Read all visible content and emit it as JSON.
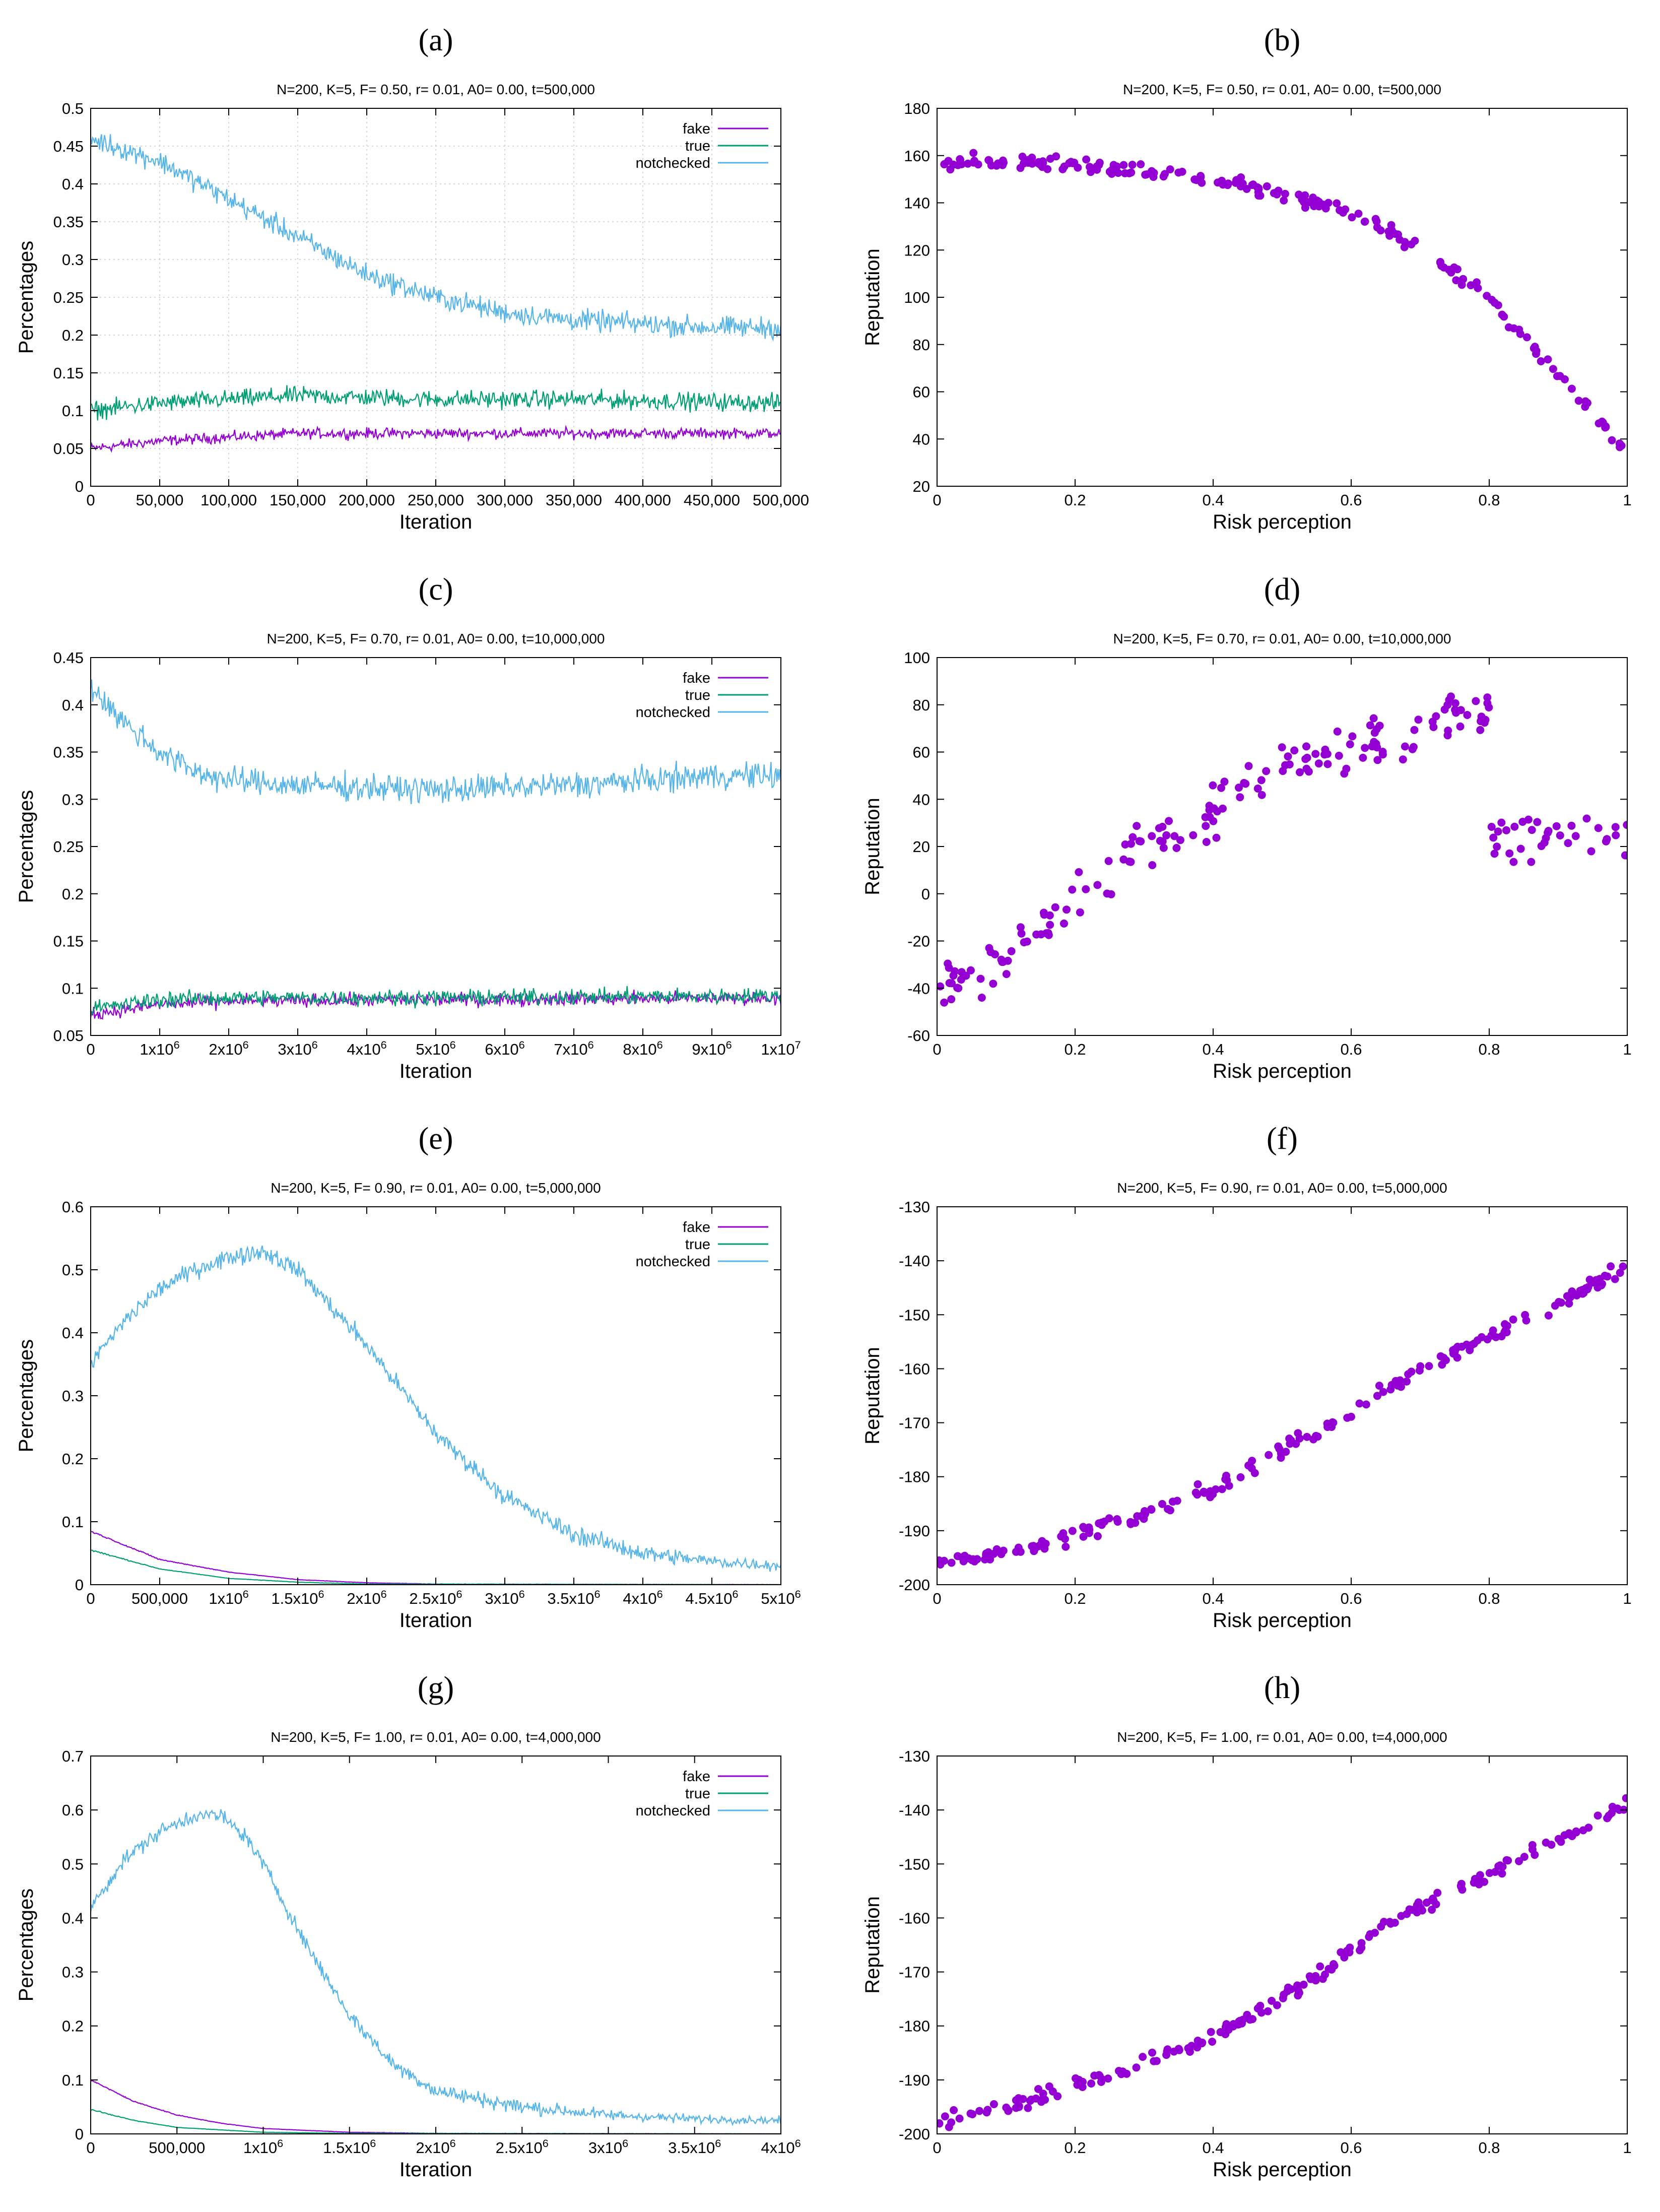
{
  "chart_data": [
    {
      "panel": "(a)",
      "type": "line",
      "title": "N=200, K=5, F= 0.50, r= 0.01, A0= 0.00, t=500,000",
      "xlabel": "Iteration",
      "ylabel": "Percentages",
      "xlim": [
        0,
        500000
      ],
      "ylim": [
        0,
        0.5
      ],
      "xticks": [
        0,
        50000,
        100000,
        150000,
        200000,
        250000,
        300000,
        350000,
        400000,
        450000,
        500000
      ],
      "xticklabels": [
        "0",
        "50,000",
        "100,000",
        "150,000",
        "200,000",
        "250,000",
        "300,000",
        "350,000",
        "400,000",
        "450,000",
        "500,000"
      ],
      "yticks": [
        0,
        0.05,
        0.1,
        0.15,
        0.2,
        0.25,
        0.3,
        0.35,
        0.4,
        0.45,
        0.5
      ],
      "yticklabels": [
        "0",
        "0.05",
        "0.1",
        "0.15",
        "0.2",
        "0.25",
        "0.3",
        "0.35",
        "0.4",
        "0.45",
        "0.5"
      ],
      "grid": true,
      "legend": "top-right",
      "series": [
        {
          "name": "fake",
          "color": "#9400d3",
          "noise": 0.006,
          "x": [
            0,
            50000,
            100000,
            150000,
            200000,
            300000,
            400000,
            500000
          ],
          "y": [
            0.05,
            0.06,
            0.065,
            0.07,
            0.07,
            0.07,
            0.07,
            0.07
          ]
        },
        {
          "name": "true",
          "color": "#009e73",
          "noise": 0.01,
          "x": [
            0,
            50000,
            100000,
            150000,
            250000,
            350000,
            500000
          ],
          "y": [
            0.1,
            0.11,
            0.115,
            0.12,
            0.115,
            0.115,
            0.11
          ]
        },
        {
          "name": "notchecked",
          "color": "#56b4e9",
          "noise": 0.012,
          "x": [
            0,
            50000,
            100000,
            150000,
            200000,
            250000,
            300000,
            350000,
            400000,
            450000,
            500000
          ],
          "y": [
            0.46,
            0.43,
            0.38,
            0.33,
            0.28,
            0.25,
            0.23,
            0.22,
            0.215,
            0.21,
            0.21
          ]
        }
      ]
    },
    {
      "panel": "(b)",
      "type": "scatter",
      "title": "N=200, K=5, F= 0.50, r= 0.01, A0= 0.00, t=500,000",
      "xlabel": "Risk perception",
      "ylabel": "Reputation",
      "xlim": [
        0,
        1
      ],
      "ylim": [
        20,
        180
      ],
      "xticks": [
        0,
        0.2,
        0.4,
        0.6,
        0.8,
        1
      ],
      "xticklabels": [
        "0",
        "0.2",
        "0.4",
        "0.6",
        "0.8",
        "1"
      ],
      "yticks": [
        20,
        40,
        60,
        80,
        100,
        120,
        140,
        160,
        180
      ],
      "yticklabels": [
        "20",
        "40",
        "60",
        "80",
        "100",
        "120",
        "140",
        "160",
        "180"
      ],
      "grid": false,
      "color": "#9400d3",
      "n_points": 200,
      "noise": 2.5,
      "trend": {
        "x": [
          0,
          0.1,
          0.2,
          0.3,
          0.4,
          0.5,
          0.6,
          0.7,
          0.8,
          0.9,
          1.0
        ],
        "y": [
          158,
          157,
          156,
          154,
          150,
          144,
          136,
          121,
          100,
          67,
          34
        ]
      }
    },
    {
      "panel": "(c)",
      "type": "line",
      "title": "N=200, K=5, F= 0.70, r= 0.01, A0= 0.00, t=10,000,000",
      "xlabel": "Iteration",
      "ylabel": "Percentages",
      "xlim": [
        0,
        10000000
      ],
      "ylim": [
        0.05,
        0.45
      ],
      "xticks": [
        0,
        1000000,
        2000000,
        3000000,
        4000000,
        5000000,
        6000000,
        7000000,
        8000000,
        9000000,
        10000000
      ],
      "xticklabels": [
        "0",
        "1x10^6",
        "2x10^6",
        "3x10^6",
        "4x10^6",
        "5x10^6",
        "6x10^6",
        "7x10^6",
        "8x10^6",
        "9x10^6",
        "1x10^7"
      ],
      "yticks": [
        0.05,
        0.1,
        0.15,
        0.2,
        0.25,
        0.3,
        0.35,
        0.4,
        0.45
      ],
      "yticklabels": [
        "0.05",
        "0.1",
        "0.15",
        "0.2",
        "0.25",
        "0.3",
        "0.35",
        "0.4",
        "0.45"
      ],
      "grid": false,
      "legend": "top-right",
      "series": [
        {
          "name": "fake",
          "color": "#9400d3",
          "noise": 0.006,
          "x": [
            0,
            1000000,
            2000000,
            5000000,
            10000000
          ],
          "y": [
            0.072,
            0.083,
            0.086,
            0.088,
            0.09
          ]
        },
        {
          "name": "true",
          "color": "#009e73",
          "noise": 0.007,
          "x": [
            0,
            1000000,
            2000000,
            5000000,
            10000000
          ],
          "y": [
            0.078,
            0.088,
            0.09,
            0.09,
            0.092
          ]
        },
        {
          "name": "notchecked",
          "color": "#56b4e9",
          "noise": 0.012,
          "x": [
            0,
            500000,
            1000000,
            1500000,
            2000000,
            3000000,
            5000000,
            7000000,
            8000000,
            9000000,
            10000000
          ],
          "y": [
            0.42,
            0.38,
            0.35,
            0.33,
            0.32,
            0.315,
            0.31,
            0.315,
            0.32,
            0.325,
            0.325
          ]
        }
      ]
    },
    {
      "panel": "(d)",
      "type": "scatter",
      "title": "N=200, K=5, F= 0.70, r= 0.01, A0= 0.00, t=10,000,000",
      "xlabel": "Risk perception",
      "ylabel": "Reputation",
      "xlim": [
        0,
        1
      ],
      "ylim": [
        -60,
        100
      ],
      "xticks": [
        0,
        0.2,
        0.4,
        0.6,
        0.8,
        1
      ],
      "xticklabels": [
        "0",
        "0.2",
        "0.4",
        "0.6",
        "0.8",
        "1"
      ],
      "yticks": [
        -60,
        -40,
        -20,
        0,
        20,
        40,
        60,
        80,
        100
      ],
      "yticklabels": [
        "-60",
        "-40",
        "-20",
        "0",
        "20",
        "40",
        "60",
        "80",
        "100"
      ],
      "grid": false,
      "color": "#9400d3",
      "n_points": 200,
      "noise": 9,
      "trend": {
        "x": [
          0,
          0.1,
          0.2,
          0.3,
          0.4,
          0.5,
          0.6,
          0.7,
          0.8,
          0.801,
          0.9,
          1.0
        ],
        "y": [
          -42,
          -30,
          0,
          20,
          35,
          55,
          62,
          70,
          82,
          22,
          25,
          20
        ]
      }
    },
    {
      "panel": "(e)",
      "type": "line",
      "title": "N=200, K=5, F= 0.90, r= 0.01, A0= 0.00, t=5,000,000",
      "xlabel": "Iteration",
      "ylabel": "Percentages",
      "xlim": [
        0,
        5000000
      ],
      "ylim": [
        0,
        0.6
      ],
      "xticks": [
        0,
        500000,
        1000000,
        1500000,
        2000000,
        2500000,
        3000000,
        3500000,
        4000000,
        4500000,
        5000000
      ],
      "xticklabels": [
        "0",
        "500,000",
        "1x10^6",
        "1.5x10^6",
        "2x10^6",
        "2.5x10^6",
        "3x10^6",
        "3.5x10^6",
        "4x10^6",
        "4.5x10^6",
        "5x10^6"
      ],
      "yticks": [
        0,
        0.1,
        0.2,
        0.3,
        0.4,
        0.5,
        0.6
      ],
      "yticklabels": [
        "0",
        "0.1",
        "0.2",
        "0.3",
        "0.4",
        "0.5",
        "0.6"
      ],
      "grid": false,
      "legend": "top-right",
      "series": [
        {
          "name": "fake",
          "color": "#9400d3",
          "noise": 0.001,
          "x": [
            0,
            500000,
            1000000,
            1500000,
            2000000,
            2500000,
            5000000
          ],
          "y": [
            0.085,
            0.04,
            0.02,
            0.008,
            0.003,
            0.001,
            0
          ]
        },
        {
          "name": "true",
          "color": "#009e73",
          "noise": 0.001,
          "x": [
            0,
            500000,
            1000000,
            1500000,
            2000000,
            5000000
          ],
          "y": [
            0.055,
            0.025,
            0.01,
            0.004,
            0.001,
            0
          ]
        },
        {
          "name": "notchecked",
          "color": "#56b4e9",
          "noise": 0.012,
          "x": [
            0,
            250000,
            500000,
            750000,
            1000000,
            1250000,
            1500000,
            2000000,
            2500000,
            3000000,
            3500000,
            4000000,
            4500000,
            5000000
          ],
          "y": [
            0.35,
            0.42,
            0.47,
            0.5,
            0.52,
            0.53,
            0.5,
            0.38,
            0.24,
            0.14,
            0.08,
            0.05,
            0.037,
            0.03
          ]
        }
      ]
    },
    {
      "panel": "(f)",
      "type": "scatter",
      "title": "N=200, K=5, F= 0.90, r= 0.01, A0= 0.00, t=5,000,000",
      "xlabel": "Risk perception",
      "ylabel": "Reputation",
      "xlim": [
        0,
        1
      ],
      "ylim": [
        -200,
        -130
      ],
      "xticks": [
        0,
        0.2,
        0.4,
        0.6,
        0.8,
        1
      ],
      "xticklabels": [
        "0",
        "0.2",
        "0.4",
        "0.6",
        "0.8",
        "1"
      ],
      "yticks": [
        -200,
        -190,
        -180,
        -170,
        -160,
        -150,
        -140,
        -130
      ],
      "yticklabels": [
        "-200",
        "-190",
        "-180",
        "-170",
        "-160",
        "-150",
        "-140",
        "-130"
      ],
      "grid": false,
      "color": "#9400d3",
      "n_points": 200,
      "noise": 1.2,
      "trend": {
        "x": [
          0,
          0.1,
          0.2,
          0.3,
          0.4,
          0.5,
          0.6,
          0.7,
          0.8,
          0.9,
          1.0
        ],
        "y": [
          -196,
          -194,
          -191,
          -187,
          -182,
          -175,
          -168,
          -160,
          -154,
          -148,
          -141
        ]
      }
    },
    {
      "panel": "(g)",
      "type": "line",
      "title": "N=200, K=5, F= 1.00, r= 0.01, A0= 0.00, t=4,000,000",
      "xlabel": "Iteration",
      "ylabel": "Percentages",
      "xlim": [
        0,
        4000000
      ],
      "ylim": [
        0,
        0.7
      ],
      "xticks": [
        0,
        500000,
        1000000,
        1500000,
        2000000,
        2500000,
        3000000,
        3500000,
        4000000
      ],
      "xticklabels": [
        "0",
        "500,000",
        "1x10^6",
        "1.5x10^6",
        "2x10^6",
        "2.5x10^6",
        "3x10^6",
        "3.5x10^6",
        "4x10^6"
      ],
      "yticks": [
        0,
        0.1,
        0.2,
        0.3,
        0.4,
        0.5,
        0.6,
        0.7
      ],
      "yticklabels": [
        "0",
        "0.1",
        "0.2",
        "0.3",
        "0.4",
        "0.5",
        "0.6",
        "0.7"
      ],
      "grid": false,
      "legend": "top-right",
      "series": [
        {
          "name": "fake",
          "color": "#9400d3",
          "noise": 0.001,
          "x": [
            0,
            250000,
            500000,
            750000,
            1000000,
            1500000,
            2000000,
            4000000
          ],
          "y": [
            0.1,
            0.06,
            0.035,
            0.02,
            0.01,
            0.003,
            0.001,
            0
          ]
        },
        {
          "name": "true",
          "color": "#009e73",
          "noise": 0.001,
          "x": [
            0,
            250000,
            500000,
            1000000,
            1500000,
            4000000
          ],
          "y": [
            0.045,
            0.025,
            0.012,
            0.003,
            0.001,
            0
          ]
        },
        {
          "name": "notchecked",
          "color": "#56b4e9",
          "noise": 0.012,
          "x": [
            0,
            200000,
            400000,
            600000,
            750000,
            900000,
            1000000,
            1250000,
            1500000,
            1750000,
            2000000,
            2500000,
            3000000,
            3500000,
            4000000
          ],
          "y": [
            0.42,
            0.51,
            0.56,
            0.59,
            0.59,
            0.55,
            0.5,
            0.35,
            0.22,
            0.13,
            0.08,
            0.05,
            0.035,
            0.028,
            0.025
          ]
        }
      ]
    },
    {
      "panel": "(h)",
      "type": "scatter",
      "title": "N=200, K=5, F= 1.00, r= 0.01, A0= 0.00, t=4,000,000",
      "xlabel": "Risk perception",
      "ylabel": "Reputation",
      "xlim": [
        0,
        1
      ],
      "ylim": [
        -200,
        -130
      ],
      "xticks": [
        0,
        0.2,
        0.4,
        0.6,
        0.8,
        1
      ],
      "xticklabels": [
        "0",
        "0.2",
        "0.4",
        "0.6",
        "0.8",
        "1"
      ],
      "yticks": [
        -200,
        -190,
        -180,
        -170,
        -160,
        -150,
        -140,
        -130
      ],
      "yticklabels": [
        "-200",
        "-190",
        "-180",
        "-170",
        "-160",
        "-150",
        "-140",
        "-130"
      ],
      "grid": false,
      "color": "#9400d3",
      "n_points": 200,
      "noise": 1.2,
      "trend": {
        "x": [
          0,
          0.1,
          0.2,
          0.3,
          0.4,
          0.5,
          0.6,
          0.7,
          0.8,
          0.9,
          1.0
        ],
        "y": [
          -198,
          -195,
          -191,
          -187,
          -182,
          -175,
          -166,
          -158,
          -152,
          -145,
          -139
        ]
      }
    }
  ]
}
